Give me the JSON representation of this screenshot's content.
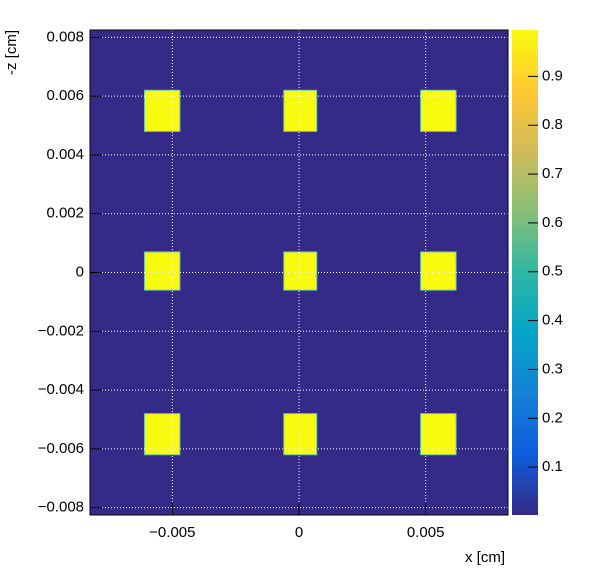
{
  "chart_data": {
    "type": "heatmap",
    "x_label": "x [cm]",
    "y_label": "-z [cm]",
    "xlim": [
      -0.00825,
      0.00825
    ],
    "ylim": [
      -0.00825,
      0.00825
    ],
    "xticks": [
      {
        "value": -0.005,
        "label": "−0.005"
      },
      0,
      0.005
    ],
    "yticks": [
      {
        "value": -0.008,
        "label": "−0.008"
      },
      {
        "value": -0.006,
        "label": "−0.006"
      },
      {
        "value": -0.004,
        "label": "−0.004"
      },
      {
        "value": -0.002,
        "label": "−0.002"
      },
      0,
      0.002,
      0.004,
      0.006,
      0.008
    ],
    "zlim": [
      0.002,
      0.995
    ],
    "zticks": [
      0.1,
      0.2,
      0.3,
      0.4,
      0.5,
      0.6,
      0.7,
      0.8,
      0.9
    ],
    "grid": true,
    "colorscale": [
      "#352a87",
      "#0f5cdd",
      "#1481d6",
      "#06a4ca",
      "#2eb7a4",
      "#87bf77",
      "#d1bb59",
      "#fec832",
      "#f9fb0e"
    ],
    "background": 0.002,
    "cells": [
      {
        "x": [
          -0.0061,
          -0.0047
        ],
        "y": [
          0.0048,
          0.0062
        ],
        "value": 0.995
      },
      {
        "x": [
          -0.0006,
          0.0007
        ],
        "y": [
          0.0048,
          0.0062
        ],
        "value": 0.995
      },
      {
        "x": [
          0.0048,
          0.0062
        ],
        "y": [
          0.0048,
          0.0062
        ],
        "value": 0.995
      },
      {
        "x": [
          -0.0061,
          -0.0047
        ],
        "y": [
          -0.0006,
          0.0007
        ],
        "value": 0.995
      },
      {
        "x": [
          -0.0006,
          0.0007
        ],
        "y": [
          -0.0006,
          0.0007
        ],
        "value": 0.995
      },
      {
        "x": [
          0.0048,
          0.0062
        ],
        "y": [
          -0.0006,
          0.0007
        ],
        "value": 0.995
      },
      {
        "x": [
          -0.0061,
          -0.0047
        ],
        "y": [
          -0.0062,
          -0.0048
        ],
        "value": 0.995
      },
      {
        "x": [
          -0.0006,
          0.0007
        ],
        "y": [
          -0.0062,
          -0.0048
        ],
        "value": 0.995
      },
      {
        "x": [
          0.0048,
          0.0062
        ],
        "y": [
          -0.0062,
          -0.0048
        ],
        "value": 0.995
      }
    ]
  }
}
